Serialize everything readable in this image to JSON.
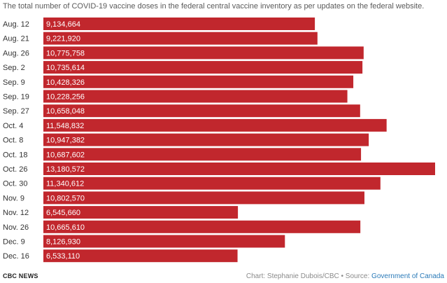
{
  "subtitle": "The total number of COVID-19 vaccine doses in the federal central vaccine inventory as per updates on the federal website.",
  "footer": {
    "logo": "CBC NEWS",
    "credit_prefix": "Chart: Stephanie Dubois/CBC • Source: ",
    "source_link": "Government of Canada"
  },
  "colors": {
    "bar": "#c1272d",
    "link": "#2a7ab8"
  },
  "chart_data": {
    "type": "bar",
    "orientation": "horizontal",
    "categories": [
      "Aug. 12",
      "Aug. 21",
      "Aug. 26",
      "Sep. 2",
      "Sep. 9",
      "Sep. 19",
      "Sep. 27",
      "Oct. 4",
      "Oct. 8",
      "Oct. 18",
      "Oct. 26",
      "Oct. 30",
      "Nov. 9",
      "Nov. 12",
      "Nov. 26",
      "Dec. 9",
      "Dec. 16"
    ],
    "values": [
      9134664,
      9221920,
      10775758,
      10735614,
      10428326,
      10228256,
      10658048,
      11548832,
      10947382,
      10687602,
      13180572,
      11340612,
      10802570,
      6545660,
      10665610,
      8126930,
      6533110
    ],
    "value_labels": [
      "9,134,664",
      "9,221,920",
      "10,775,758",
      "10,735,614",
      "10,428,326",
      "10,228,256",
      "10,658,048",
      "11,548,832",
      "10,947,382",
      "10,687,602",
      "13,180,572",
      "11,340,612",
      "10,802,570",
      "6,545,660",
      "10,665,610",
      "8,126,930",
      "6,533,110"
    ],
    "title": "",
    "xlabel": "",
    "ylabel": "",
    "xlim": [
      0,
      13180572
    ],
    "grid": false,
    "legend": "none"
  }
}
